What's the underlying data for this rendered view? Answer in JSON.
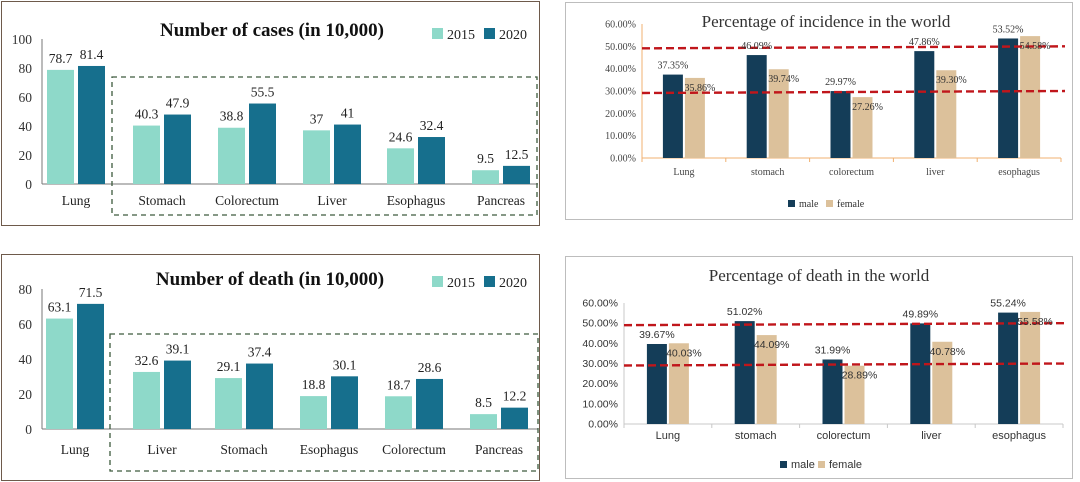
{
  "colors": {
    "c2015": "#8ed9c9",
    "c2020": "#166f8d",
    "male": "#143d58",
    "female": "#dcc19b",
    "refline": "#c0161b",
    "dashbox": "#3d5a3d"
  },
  "chart_data": [
    {
      "id": "cases",
      "type": "bar",
      "title": "Number of cases (in 10,000)",
      "categories": [
        "Lung",
        "Stomach",
        "Colorectum",
        "Liver",
        "Esophagus",
        "Pancreas"
      ],
      "series": [
        {
          "name": "2015",
          "values": [
            78.7,
            40.3,
            38.8,
            37,
            24.6,
            9.5
          ]
        },
        {
          "name": "2020",
          "values": [
            81.4,
            47.9,
            55.5,
            41,
            32.4,
            12.5
          ]
        }
      ],
      "yticks": [
        "0",
        "20",
        "40",
        "60",
        "80",
        "100"
      ],
      "ylim": [
        0,
        100
      ],
      "legend": "top-right",
      "annotation": "dashed box around all categories except Lung"
    },
    {
      "id": "incidence_pct",
      "type": "bar",
      "title": "Percentage of incidence in the world",
      "categories": [
        "Lung",
        "stomach",
        "colorectum",
        "liver",
        "esophagus"
      ],
      "series": [
        {
          "name": "male",
          "values": [
            37.35,
            46.09,
            29.97,
            47.86,
            53.52
          ]
        },
        {
          "name": "female",
          "values": [
            35.86,
            39.74,
            27.26,
            39.3,
            54.58
          ]
        }
      ],
      "labels": {
        "male": [
          "37.35%",
          "46.09%",
          "29.97%",
          "47.86%",
          "53.52%"
        ],
        "female": [
          "35.86%",
          "39.74%",
          "27.26%",
          "39.30%",
          "54.58%"
        ]
      },
      "yticks": [
        "0.00%",
        "10.00%",
        "20.00%",
        "30.00%",
        "40.00%",
        "50.00%",
        "60.00%"
      ],
      "ylim": [
        0,
        60
      ],
      "reference_lines": [
        30,
        50
      ],
      "legend": "bottom"
    },
    {
      "id": "deaths",
      "type": "bar",
      "title": "Number of death (in 10,000)",
      "categories": [
        "Lung",
        "Liver",
        "Stomach",
        "Esophagus",
        "Colorectum",
        "Pancreas"
      ],
      "series": [
        {
          "name": "2015",
          "values": [
            63.1,
            32.6,
            29.1,
            18.8,
            18.7,
            8.5
          ]
        },
        {
          "name": "2020",
          "values": [
            71.5,
            39.1,
            37.4,
            30.1,
            28.6,
            12.2
          ]
        }
      ],
      "yticks": [
        "0",
        "20",
        "40",
        "60",
        "80"
      ],
      "ylim": [
        0,
        80
      ],
      "legend": "top-right",
      "annotation": "dashed box around all categories except Lung"
    },
    {
      "id": "death_pct",
      "type": "bar",
      "title": "Percentage of death in the world",
      "categories": [
        "Lung",
        "stomach",
        "colorectum",
        "liver",
        "esophagus"
      ],
      "series": [
        {
          "name": "male",
          "values": [
            39.67,
            51.02,
            31.99,
            49.89,
            55.24
          ]
        },
        {
          "name": "female",
          "values": [
            40.03,
            44.09,
            28.89,
            40.78,
            55.58
          ]
        }
      ],
      "labels": {
        "male": [
          "39.67%",
          "51.02%",
          "31.99%",
          "49.89%",
          "55.24%"
        ],
        "female": [
          "40.03%",
          "44.09%",
          "28.89%",
          "40.78%",
          "55.58%"
        ]
      },
      "yticks": [
        "0.00%",
        "10.00%",
        "20.00%",
        "30.00%",
        "40.00%",
        "50.00%",
        "60.00%"
      ],
      "ylim": [
        0,
        60
      ],
      "reference_lines": [
        30,
        50
      ],
      "legend": "bottom"
    }
  ]
}
